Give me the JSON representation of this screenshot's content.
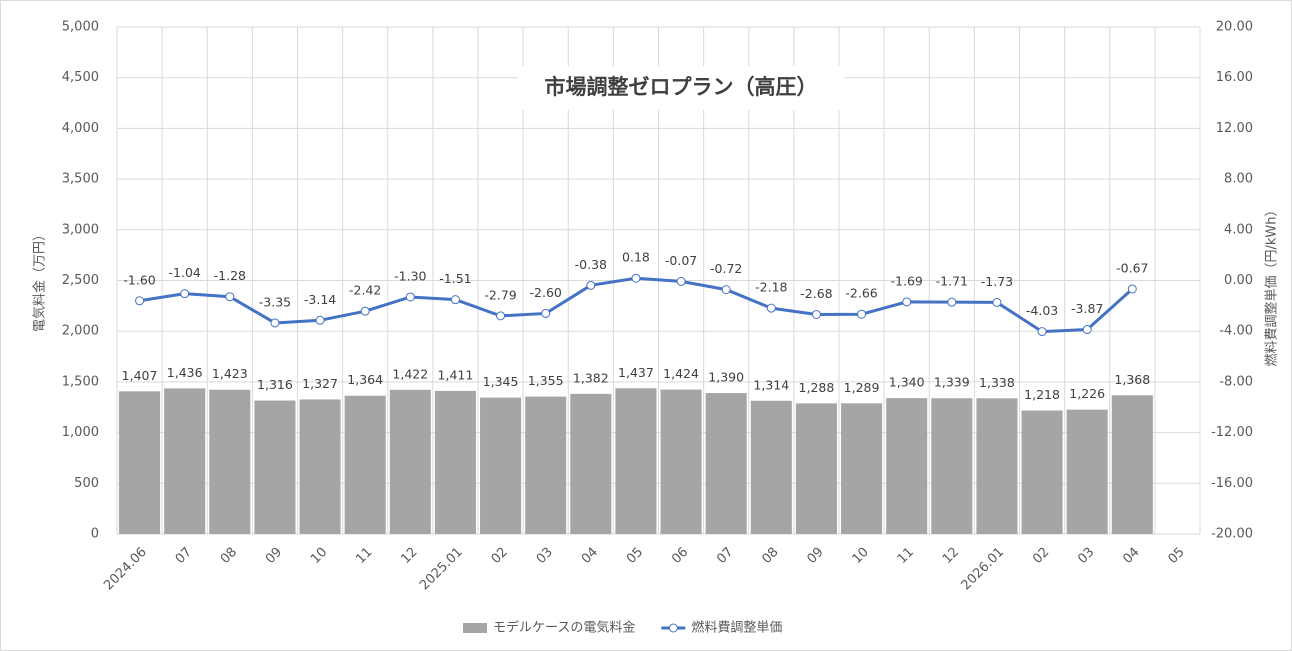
{
  "chart_data": {
    "type": "combo",
    "title": "市場調整ゼロプラン（高圧）",
    "y_label": "電気料金（万円）",
    "y2_label": "燃料費調整単価（円/kWh）",
    "categories": [
      "2024.06",
      "07",
      "08",
      "09",
      "10",
      "11",
      "12",
      "2025.01",
      "02",
      "03",
      "04",
      "05",
      "06",
      "07",
      "08",
      "09",
      "10",
      "11",
      "12",
      "2026.01",
      "02",
      "03",
      "04",
      "05"
    ],
    "series": [
      {
        "name": "モデルケースの電気料金",
        "type": "bar",
        "color": "#a5a5a5",
        "values": [
          1407,
          1436,
          1423,
          1316,
          1327,
          1364,
          1422,
          1411,
          1345,
          1355,
          1382,
          1437,
          1424,
          1390,
          1314,
          1288,
          1289,
          1340,
          1339,
          1338,
          1218,
          1226,
          1368,
          null
        ],
        "value_labels": [
          "1,407",
          "1,436",
          "1,423",
          "1,316",
          "1,327",
          "1,364",
          "1,422",
          "1,411",
          "1,345",
          "1,355",
          "1,382",
          "1,437",
          "1,424",
          "1,390",
          "1,314",
          "1,288",
          "1,289",
          "1,340",
          "1,339",
          "1,338",
          "1,218",
          "1,226",
          "1,368",
          null
        ]
      },
      {
        "name": "燃料費調整単価",
        "type": "line",
        "axis": "y2",
        "color": "#4472c4",
        "values": [
          -1.6,
          -1.04,
          -1.28,
          -3.35,
          -3.14,
          -2.42,
          -1.3,
          -1.51,
          -2.79,
          -2.6,
          -0.38,
          0.18,
          -0.07,
          -0.72,
          -2.18,
          -2.68,
          -2.66,
          -1.69,
          -1.71,
          -1.73,
          -4.03,
          -3.87,
          -0.67,
          null
        ],
        "value_labels": [
          "-1.60",
          "-1.04",
          "-1.28",
          "-3.35",
          "-3.14",
          "-2.42",
          "-1.30",
          "-1.51",
          "-2.79",
          "-2.60",
          "-0.38",
          "0.18",
          "-0.07",
          "-0.72",
          "-2.18",
          "-2.68",
          "-2.66",
          "-1.69",
          "-1.71",
          "-1.73",
          "-4.03",
          "-3.87",
          "-0.67",
          null
        ]
      }
    ],
    "ylim": [
      0,
      5000
    ],
    "yticks": [
      0,
      500,
      {
        "value": 1000,
        "label": "1,000"
      },
      {
        "value": 1500,
        "label": "1,500"
      },
      {
        "value": 2000,
        "label": "2,000"
      },
      {
        "value": 2500,
        "label": "2,500"
      },
      {
        "value": 3000,
        "label": "3,000"
      },
      {
        "value": 3500,
        "label": "3,500"
      },
      {
        "value": 4000,
        "label": "4,000"
      },
      {
        "value": 4500,
        "label": "4,500"
      },
      {
        "value": 5000,
        "label": "5,000"
      }
    ],
    "y2lim": [
      -20,
      20
    ],
    "y2ticks": [
      {
        "value": -20,
        "label": "-20.00"
      },
      {
        "value": -16,
        "label": "-16.00"
      },
      {
        "value": -12,
        "label": "-12.00"
      },
      {
        "value": -8,
        "label": "-8.00"
      },
      {
        "value": -4,
        "label": "-4.00"
      },
      {
        "value": 0,
        "label": "0.00"
      },
      {
        "value": 4,
        "label": "4.00"
      },
      {
        "value": 8,
        "label": "8.00"
      },
      {
        "value": 12,
        "label": "12.00"
      },
      {
        "value": 16,
        "label": "16.00"
      },
      {
        "value": 20,
        "label": "20.00"
      }
    ],
    "grid": true,
    "legend": "bottom"
  }
}
